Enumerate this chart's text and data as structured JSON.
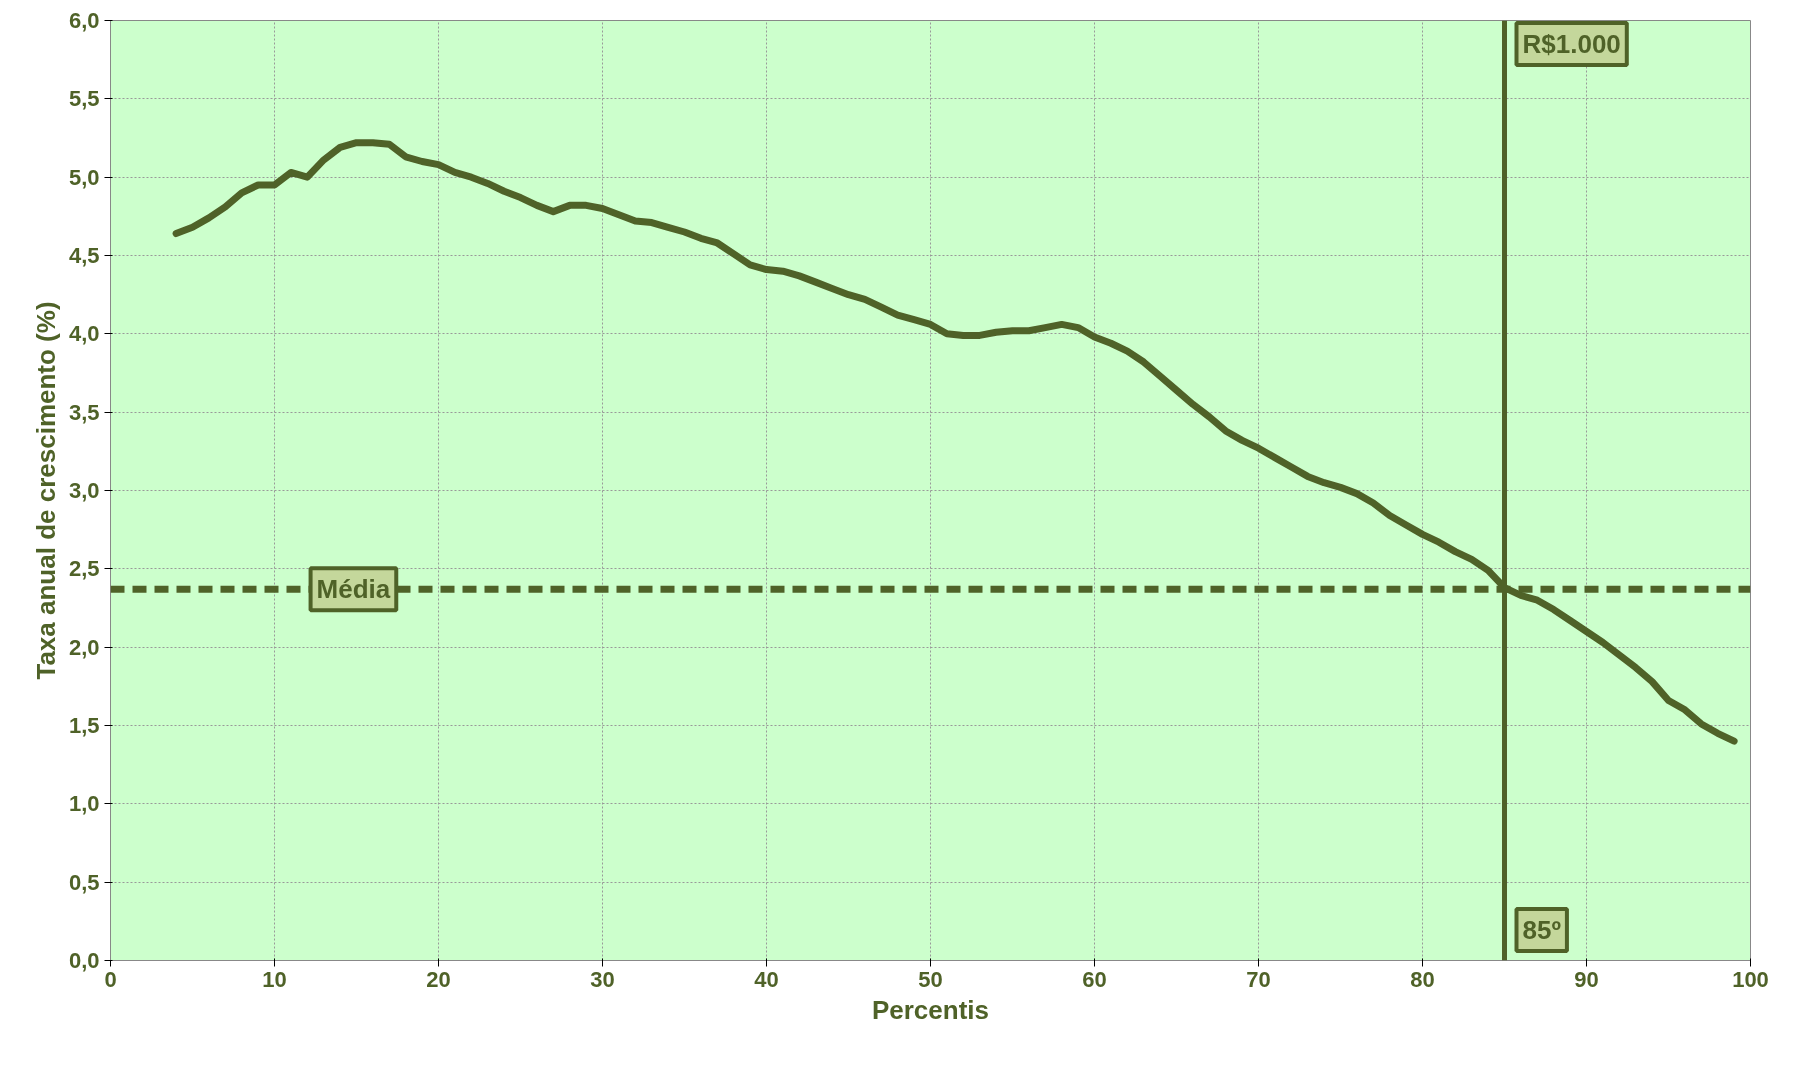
{
  "chart_data": {
    "type": "line",
    "xlabel": "Percentis",
    "ylabel": "Taxa anual de crescimento (%)",
    "x": [
      4,
      5,
      6,
      7,
      8,
      9,
      10,
      11,
      12,
      13,
      14,
      15,
      16,
      17,
      18,
      19,
      20,
      21,
      22,
      23,
      24,
      25,
      26,
      27,
      28,
      29,
      30,
      31,
      32,
      33,
      34,
      35,
      36,
      37,
      38,
      39,
      40,
      41,
      42,
      43,
      44,
      45,
      46,
      47,
      48,
      49,
      50,
      51,
      52,
      53,
      54,
      55,
      56,
      57,
      58,
      59,
      60,
      61,
      62,
      63,
      64,
      65,
      66,
      67,
      68,
      69,
      70,
      71,
      72,
      73,
      74,
      75,
      76,
      77,
      78,
      79,
      80,
      81,
      82,
      83,
      84,
      85,
      86,
      87,
      88,
      89,
      90,
      91,
      92,
      93,
      94,
      95,
      96,
      97,
      98,
      99
    ],
    "series": [
      {
        "color": "#4f6228",
        "values": [
          4.64,
          4.68,
          4.74,
          4.81,
          4.9,
          4.95,
          4.95,
          5.03,
          5.0,
          5.11,
          5.19,
          5.22,
          5.22,
          5.21,
          5.13,
          5.1,
          5.08,
          5.03,
          5.0,
          4.96,
          4.91,
          4.87,
          4.82,
          4.78,
          4.82,
          4.82,
          4.8,
          4.76,
          4.72,
          4.71,
          4.68,
          4.65,
          4.61,
          4.58,
          4.51,
          4.44,
          4.41,
          4.4,
          4.37,
          4.33,
          4.29,
          4.25,
          4.22,
          4.17,
          4.12,
          4.09,
          4.06,
          4.0,
          3.99,
          3.99,
          4.01,
          4.02,
          4.02,
          4.04,
          4.06,
          4.04,
          3.98,
          3.94,
          3.89,
          3.82,
          3.73,
          3.64,
          3.55,
          3.47,
          3.38,
          3.32,
          3.27,
          3.21,
          3.15,
          3.09,
          3.05,
          3.02,
          2.98,
          2.92,
          2.84,
          2.78,
          2.72,
          2.67,
          2.61,
          2.56,
          2.49,
          2.38,
          2.33,
          2.3,
          2.24,
          2.17,
          2.1,
          2.03,
          1.95,
          1.87,
          1.78,
          1.66,
          1.6,
          1.51,
          1.45,
          1.4
        ]
      }
    ],
    "xlim": [
      0,
      100
    ],
    "xticks": [
      0,
      10,
      20,
      30,
      40,
      50,
      60,
      70,
      80,
      90,
      100
    ],
    "ylim": [
      0,
      6
    ],
    "yticks": [
      {
        "value": 0,
        "label": "0,0"
      },
      {
        "value": 0.5,
        "label": "0,5"
      },
      {
        "value": 1,
        "label": "1,0"
      },
      {
        "value": 1.5,
        "label": "1,5"
      },
      {
        "value": 2,
        "label": "2,0"
      },
      {
        "value": 2.5,
        "label": "2,5"
      },
      {
        "value": 3,
        "label": "3,0"
      },
      {
        "value": 3.5,
        "label": "3,5"
      },
      {
        "value": 4,
        "label": "4,0"
      },
      {
        "value": 4.5,
        "label": "4,5"
      },
      {
        "value": 5,
        "label": "5,0"
      },
      {
        "value": 5.5,
        "label": "5,5"
      },
      {
        "value": 6,
        "label": "6,0"
      }
    ],
    "grid": true,
    "line_style": "solid",
    "marker": "none",
    "ref_lines": [
      {
        "axis": "y",
        "value": 2.37,
        "label": "Média",
        "line_style": "dashed",
        "color": "#4f6228"
      },
      {
        "axis": "x",
        "value": 85,
        "label": "85º",
        "line_style": "solid",
        "color": "#4f6228"
      }
    ],
    "annotations": [
      {
        "text": "R$1.000",
        "x": 85,
        "y": 5.85
      }
    ]
  }
}
